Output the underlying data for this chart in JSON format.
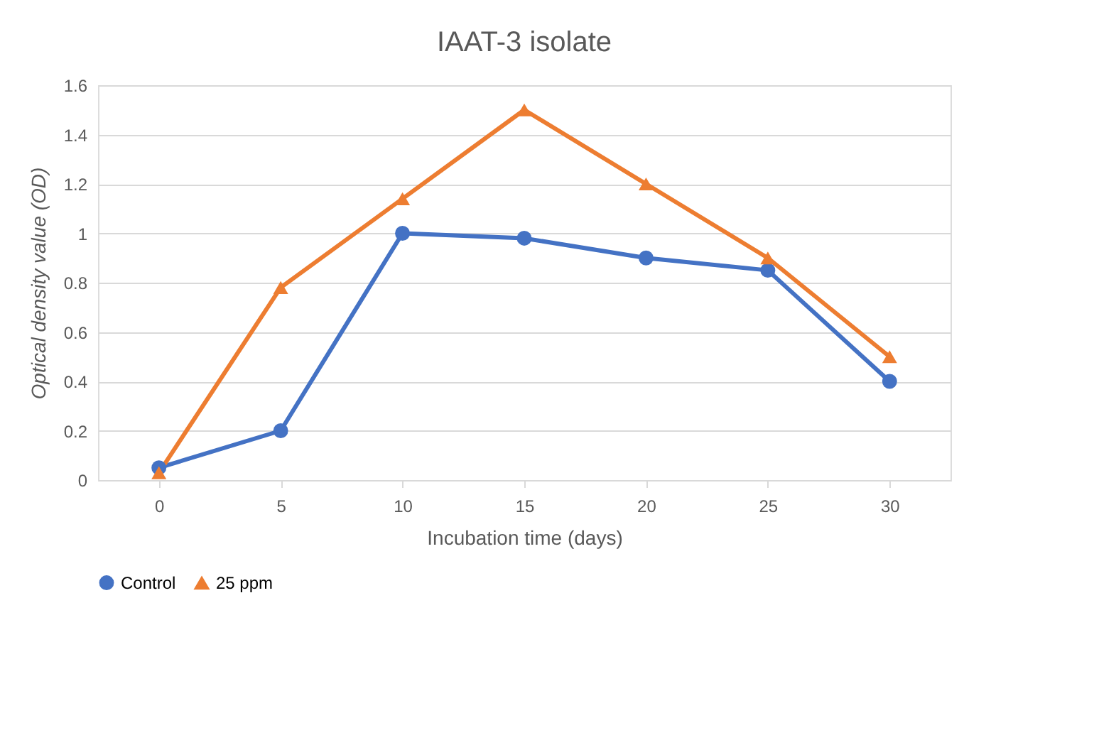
{
  "chart_data": {
    "type": "line",
    "title": "IAAT-3 isolate",
    "xlabel": "Incubation time (days)",
    "ylabel": "Optical density value (OD)",
    "categories": [
      "0",
      "5",
      "10",
      "15",
      "20",
      "25",
      "30"
    ],
    "series": [
      {
        "name": "Control",
        "color": "#4472c4",
        "marker": "circle",
        "values": [
          0.05,
          0.2,
          1.0,
          0.98,
          0.9,
          0.85,
          0.4
        ]
      },
      {
        "name": "25 ppm",
        "color": "#ed7d31",
        "marker": "triangle",
        "values": [
          0.03,
          0.78,
          1.14,
          1.5,
          1.2,
          0.9,
          0.5
        ]
      }
    ],
    "ylim": [
      0,
      1.6
    ],
    "yticks": [
      0,
      0.2,
      0.4,
      0.6,
      0.8,
      1,
      1.2,
      1.4,
      1.6
    ],
    "grid": "y",
    "legend": "bottom",
    "line_style": "solid"
  }
}
